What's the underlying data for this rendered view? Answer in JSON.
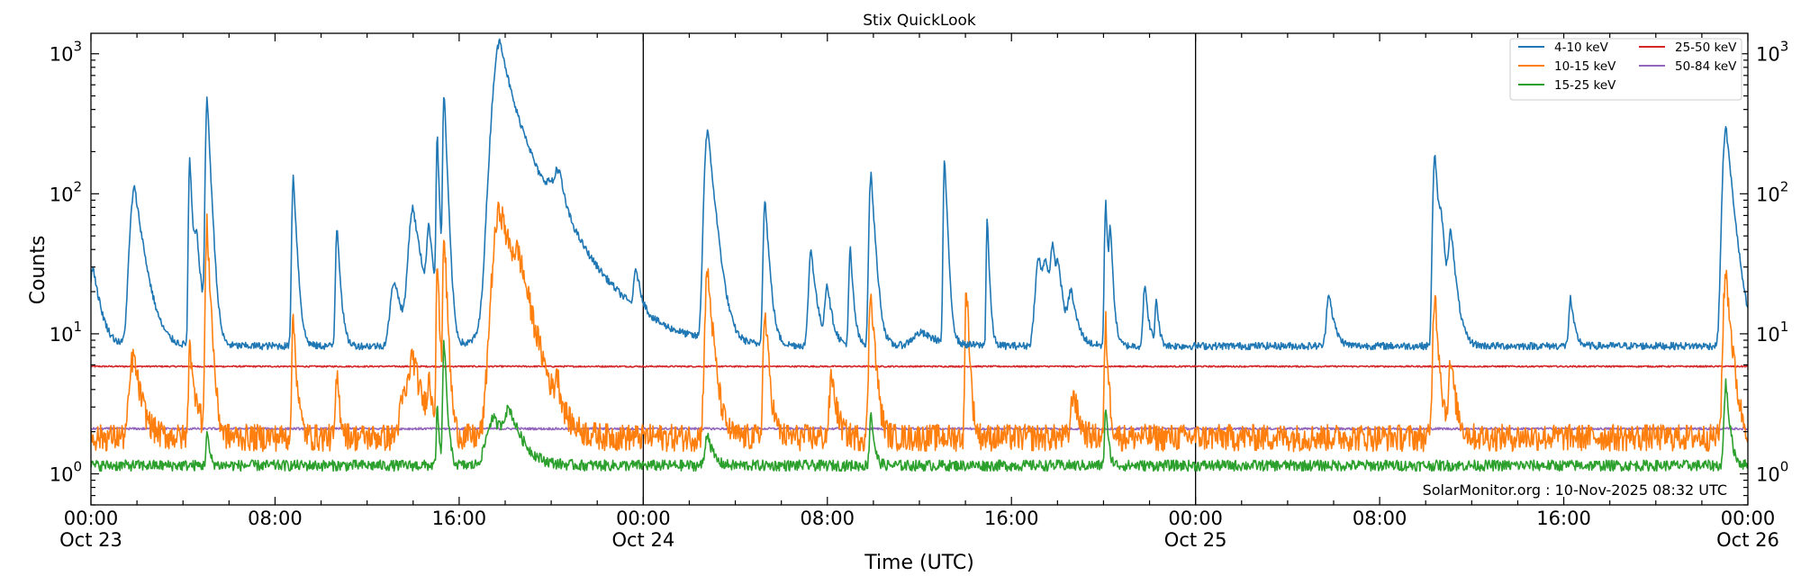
{
  "chart_data": {
    "type": "line",
    "title": "Stix QuickLook",
    "xlabel": "Time (UTC)",
    "ylabel": "Counts",
    "yscale": "log",
    "ylim": [
      0.6,
      1400
    ],
    "xlim_hours": [
      0,
      72
    ],
    "x_unit": "hours since 2025-10-23 00:00 UTC",
    "x_ticks": [
      {
        "hour": 0,
        "time": "00:00",
        "date": "Oct 23"
      },
      {
        "hour": 8,
        "time": "08:00",
        "date": ""
      },
      {
        "hour": 16,
        "time": "16:00",
        "date": ""
      },
      {
        "hour": 24,
        "time": "00:00",
        "date": "Oct 24"
      },
      {
        "hour": 32,
        "time": "08:00",
        "date": ""
      },
      {
        "hour": 40,
        "time": "16:00",
        "date": ""
      },
      {
        "hour": 48,
        "time": "00:00",
        "date": "Oct 25"
      },
      {
        "hour": 56,
        "time": "08:00",
        "date": ""
      },
      {
        "hour": 64,
        "time": "16:00",
        "date": ""
      },
      {
        "hour": 72,
        "time": "00:00",
        "date": "Oct 26"
      }
    ],
    "y_ticks": [
      {
        "value": 1,
        "base": "10",
        "exp": "0"
      },
      {
        "value": 10,
        "base": "10",
        "exp": "1"
      },
      {
        "value": 100,
        "base": "10",
        "exp": "2"
      },
      {
        "value": 1000,
        "base": "10",
        "exp": "3"
      }
    ],
    "day_boundaries_hours": [
      24,
      48
    ],
    "legend_position": "top-right",
    "series": [
      {
        "name": "4-10 keV",
        "color": "#1f77b4",
        "baseline": 8.2,
        "flares": [
          [
            0.1,
            30,
            0.3
          ],
          [
            1.9,
            110,
            0.35
          ],
          [
            4.3,
            180,
            0.1
          ],
          [
            4.6,
            45,
            0.2
          ],
          [
            5.05,
            490,
            0.12
          ],
          [
            8.8,
            135,
            0.12
          ],
          [
            10.7,
            60,
            0.12
          ],
          [
            13.2,
            24,
            0.35
          ],
          [
            14,
            78,
            0.35
          ],
          [
            14.7,
            50,
            0.2
          ],
          [
            15.05,
            260,
            0.08
          ],
          [
            15.35,
            530,
            0.1
          ],
          [
            17.6,
            290,
            0.5
          ],
          [
            17.8,
            1000,
            0.45
          ],
          [
            18.9,
            150,
            1.6
          ],
          [
            20.1,
            45,
            0.6
          ],
          [
            20.25,
            52,
            0.15
          ],
          [
            20.4,
            39,
            0.2
          ],
          [
            23.7,
            22,
            0.2
          ],
          [
            26.8,
            285,
            0.25
          ],
          [
            29.3,
            90,
            0.15
          ],
          [
            31.3,
            40,
            0.2
          ],
          [
            32,
            22,
            0.2
          ],
          [
            33,
            40,
            0.12
          ],
          [
            33.9,
            140,
            0.15
          ],
          [
            36.1,
            10.2,
            0.8
          ],
          [
            37.1,
            180,
            0.1
          ],
          [
            38.95,
            70,
            0.08
          ],
          [
            41.2,
            35,
            0.3
          ],
          [
            41.5,
            25,
            0.2
          ],
          [
            41.8,
            35,
            0.2
          ],
          [
            42.05,
            22,
            0.2
          ],
          [
            42.6,
            19,
            0.25
          ],
          [
            44.1,
            88,
            0.1
          ],
          [
            44.3,
            50,
            0.1
          ],
          [
            45.8,
            22,
            0.15
          ],
          [
            46.3,
            18,
            0.1
          ],
          [
            53.8,
            20,
            0.2
          ],
          [
            58.4,
            200,
            0.15
          ],
          [
            58.7,
            45,
            0.2
          ],
          [
            59.1,
            50,
            0.2
          ],
          [
            64.3,
            18,
            0.15
          ],
          [
            71.05,
            300,
            0.25
          ]
        ]
      },
      {
        "name": "10-15 keV",
        "color": "#ff7f0e",
        "baseline": 1.85,
        "flares": [
          [
            1.85,
            7,
            0.3
          ],
          [
            4.3,
            10,
            0.1
          ],
          [
            4.6,
            3.5,
            0.2
          ],
          [
            5.05,
            60,
            0.12
          ],
          [
            8.8,
            13,
            0.12
          ],
          [
            10.7,
            5,
            0.12
          ],
          [
            13.6,
            3.5,
            0.35
          ],
          [
            14,
            6.5,
            0.35
          ],
          [
            14.7,
            4,
            0.2
          ],
          [
            15.05,
            35,
            0.08
          ],
          [
            15.35,
            55,
            0.1
          ],
          [
            17.8,
            78,
            0.55
          ],
          [
            18.6,
            20,
            0.5
          ],
          [
            20.25,
            4,
            0.15
          ],
          [
            26.8,
            28,
            0.2
          ],
          [
            29.3,
            14,
            0.15
          ],
          [
            32.2,
            5,
            0.2
          ],
          [
            33.9,
            21,
            0.15
          ],
          [
            38.05,
            24,
            0.1
          ],
          [
            42.7,
            4,
            0.2
          ],
          [
            44.1,
            12,
            0.1
          ],
          [
            58.4,
            20,
            0.15
          ],
          [
            59.1,
            6,
            0.2
          ],
          [
            71.05,
            28,
            0.2
          ]
        ]
      },
      {
        "name": "15-25 keV",
        "color": "#2ca02c",
        "baseline": 1.15,
        "flares": [
          [
            5.05,
            2,
            0.1
          ],
          [
            15.05,
            3,
            0.08
          ],
          [
            15.35,
            9,
            0.1
          ],
          [
            17.5,
            2.5,
            0.6
          ],
          [
            18.2,
            2.5,
            0.5
          ],
          [
            26.8,
            2,
            0.2
          ],
          [
            33.9,
            2.8,
            0.12
          ],
          [
            44.1,
            3,
            0.1
          ],
          [
            71.05,
            4.5,
            0.15
          ]
        ]
      },
      {
        "name": "25-50 keV",
        "color": "#d62728",
        "baseline": 5.85,
        "flares": []
      },
      {
        "name": "50-84 keV",
        "color": "#9467bd",
        "baseline": 2.1,
        "flares": []
      }
    ]
  },
  "footer": "SolarMonitor.org : 10-Nov-2025 08:32 UTC"
}
